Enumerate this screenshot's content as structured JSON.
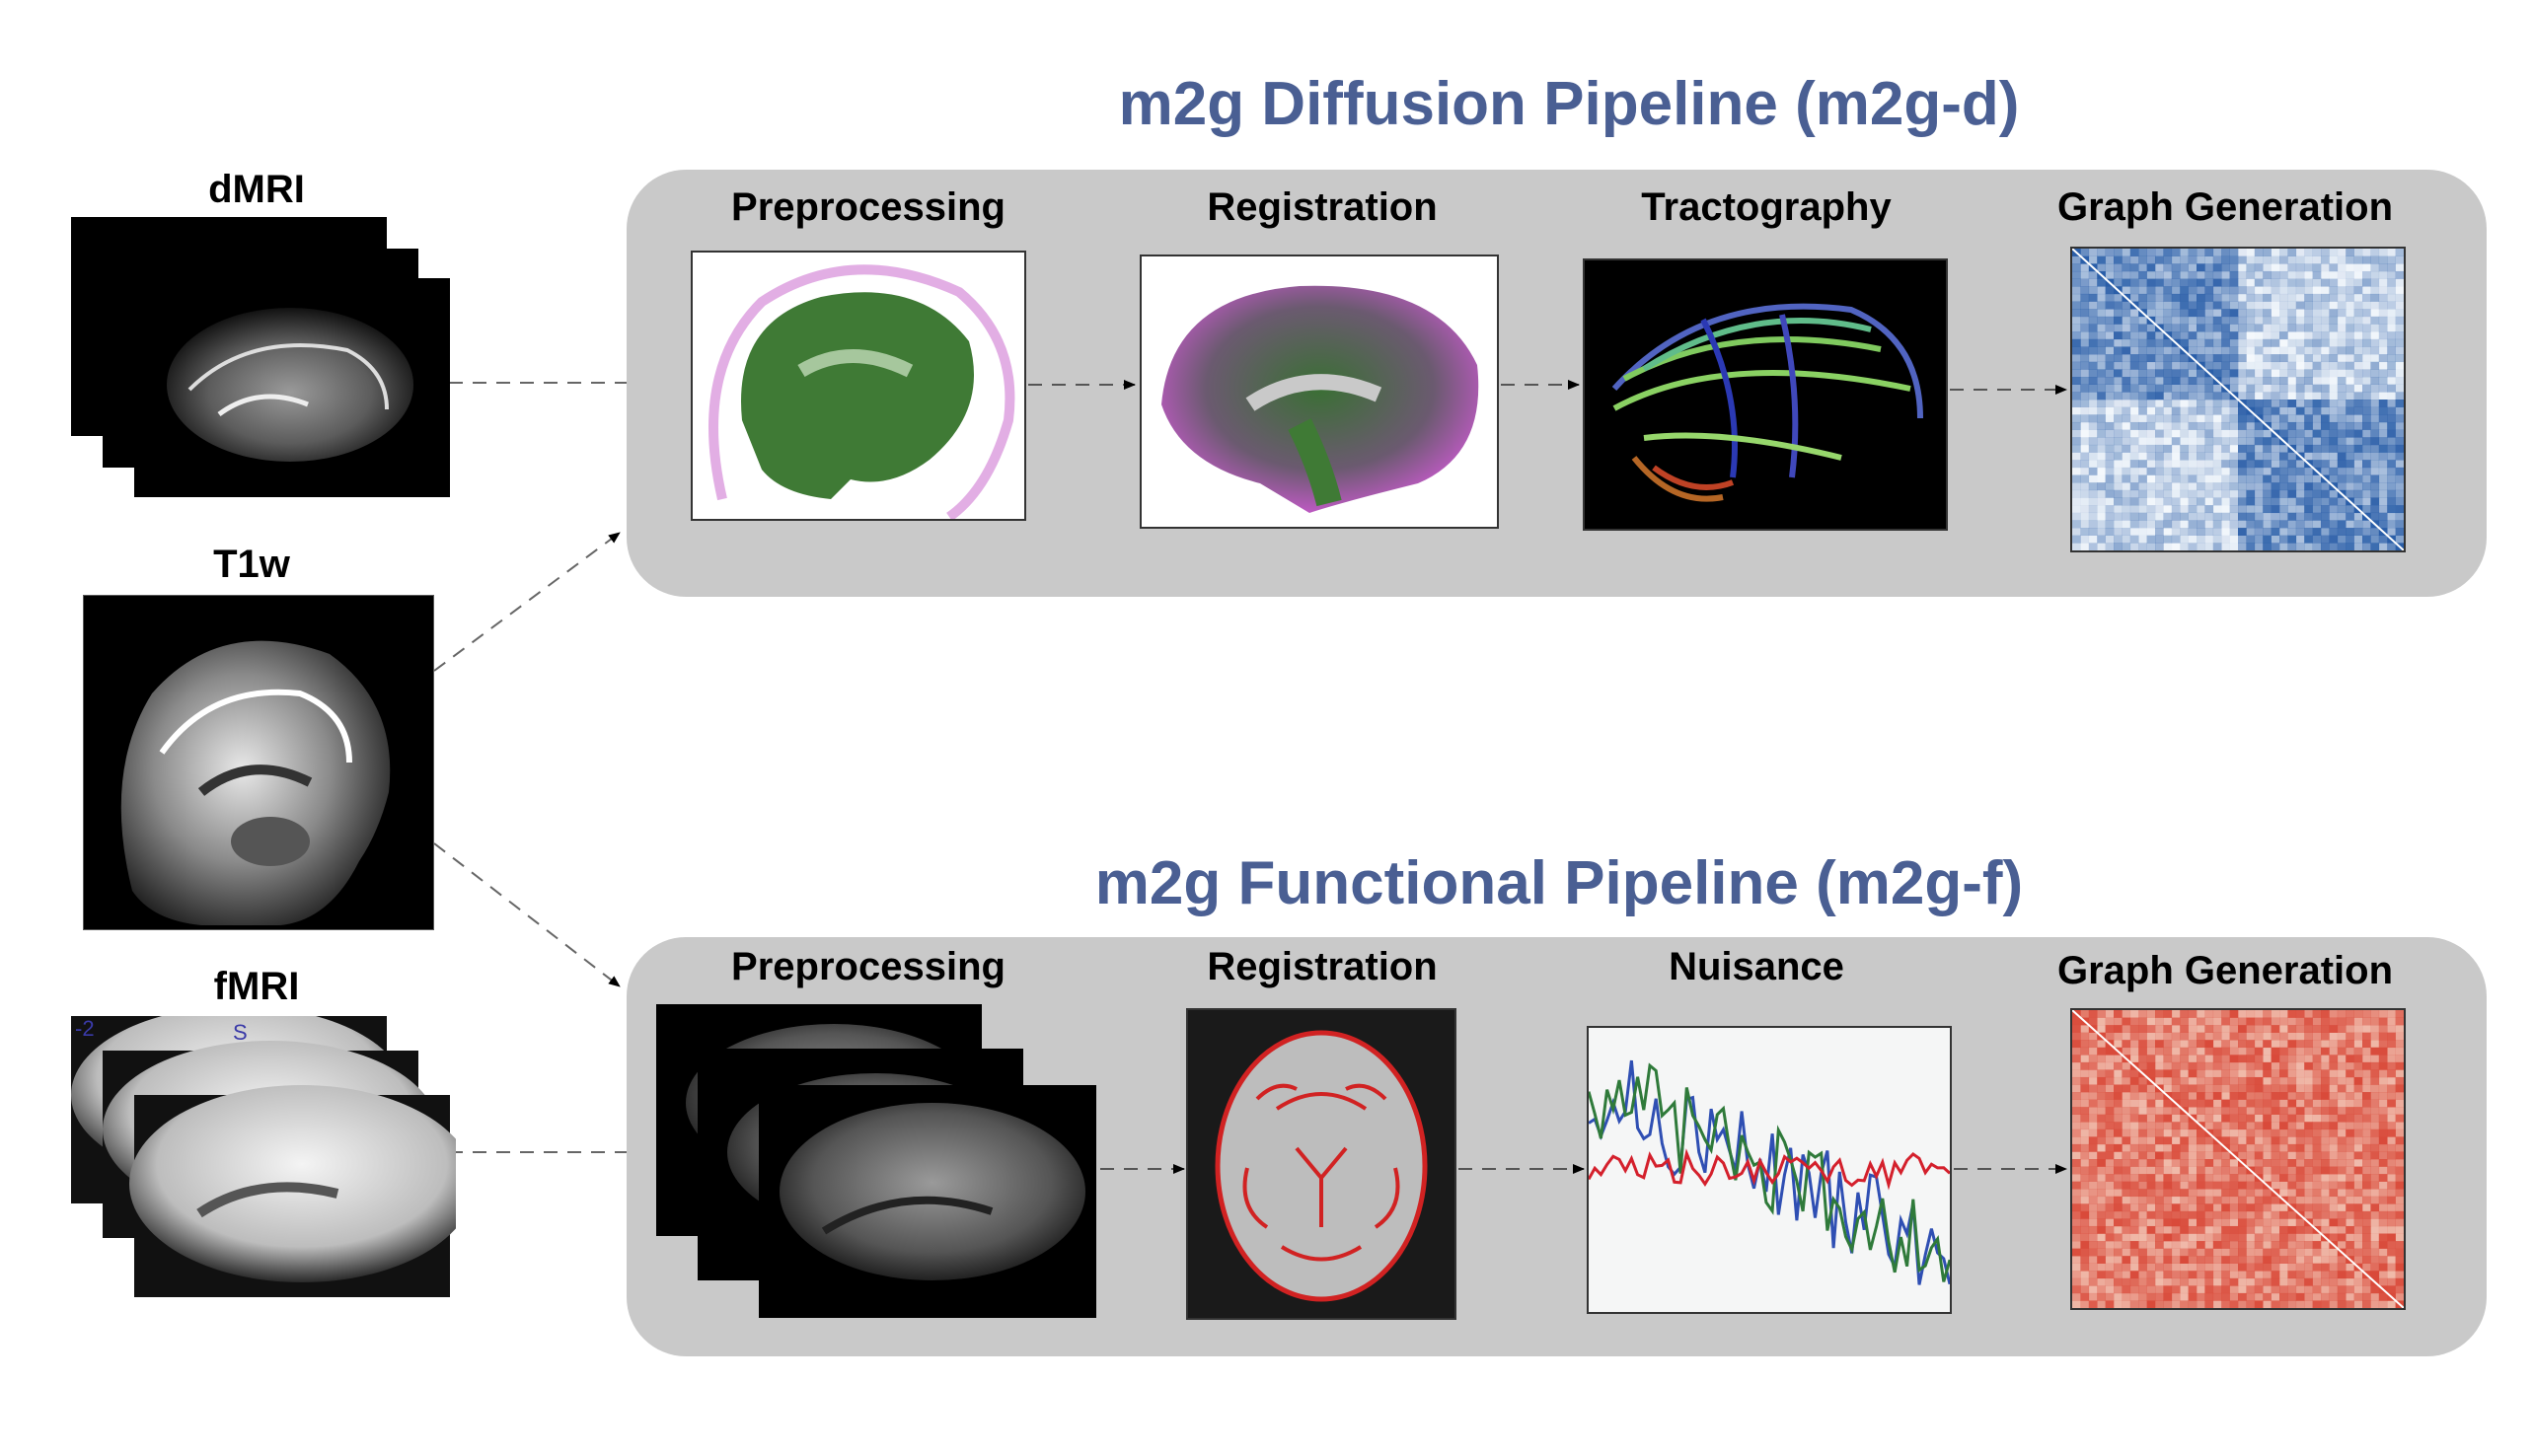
{
  "inputs": {
    "dmri_label": "dMRI",
    "t1w_label": "T1w",
    "fmri_label": "fMRI",
    "fmri_overlay_number": "-2",
    "fmri_overlay_letter": "S"
  },
  "diffusion": {
    "title": "m2g Diffusion Pipeline (m2g-d)",
    "steps": [
      "Preprocessing",
      "Registration",
      "Tractography",
      "Graph Generation"
    ]
  },
  "functional": {
    "title": "m2g Functional Pipeline (m2g-f)",
    "steps": [
      "Preprocessing",
      "Registration",
      "Nuisance",
      "Graph Generation"
    ]
  },
  "colors": {
    "title": "#4a5f93",
    "panel": "#c9c9c9",
    "connectome_blue": "#2a5ea8",
    "connectome_red": "#d94a3a",
    "mask_green": "#3f7a35",
    "overlay_magenta": "#d48ad8"
  },
  "icons": [
    "dmri-stack-icon",
    "t1w-brain-icon",
    "fmri-stack-icon",
    "arrow-icon"
  ]
}
